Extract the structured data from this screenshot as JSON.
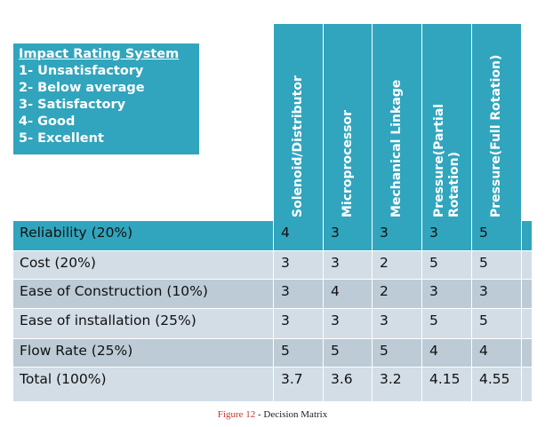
{
  "legend": {
    "title": "Impact Rating System",
    "items": [
      "1- Unsatisfactory",
      "2- Below average",
      "3- Satisfactory",
      "4- Good",
      "5- Excellent"
    ]
  },
  "columns": [
    [
      "Solenoid/Distributor"
    ],
    [
      "Microprocessor"
    ],
    [
      "Mechanical Linkage"
    ],
    [
      "Pressure(Partial",
      "Rotation)"
    ],
    [
      "Pressure(Full Rotation)"
    ]
  ],
  "rows": [
    {
      "label": "Reliability (20%)",
      "values": [
        "4",
        "3",
        "3",
        "3",
        "5"
      ]
    },
    {
      "label": "Cost (20%)",
      "values": [
        "3",
        "3",
        "2",
        "5",
        "5"
      ]
    },
    {
      "label": "Ease of Construction (10%)",
      "values": [
        "3",
        "4",
        "2",
        "3",
        "3"
      ]
    },
    {
      "label": "Ease of installation (25%)",
      "values": [
        "3",
        "3",
        "3",
        "5",
        "5"
      ]
    },
    {
      "label": "Flow Rate (25%)",
      "values": [
        "5",
        "5",
        "5",
        "4",
        "4"
      ]
    },
    {
      "label": "Total (100%)",
      "values": [
        "3.7",
        "3.6",
        "3.2",
        "4.15",
        "4.55"
      ]
    }
  ],
  "caption": {
    "figure": "Figure  12",
    "text": " - Decision  Matrix"
  },
  "colors": {
    "header": "#31a5bd",
    "row_light": "#d2dde6",
    "row_dark": "#bccbd6",
    "first_row": "#31a5bd"
  }
}
